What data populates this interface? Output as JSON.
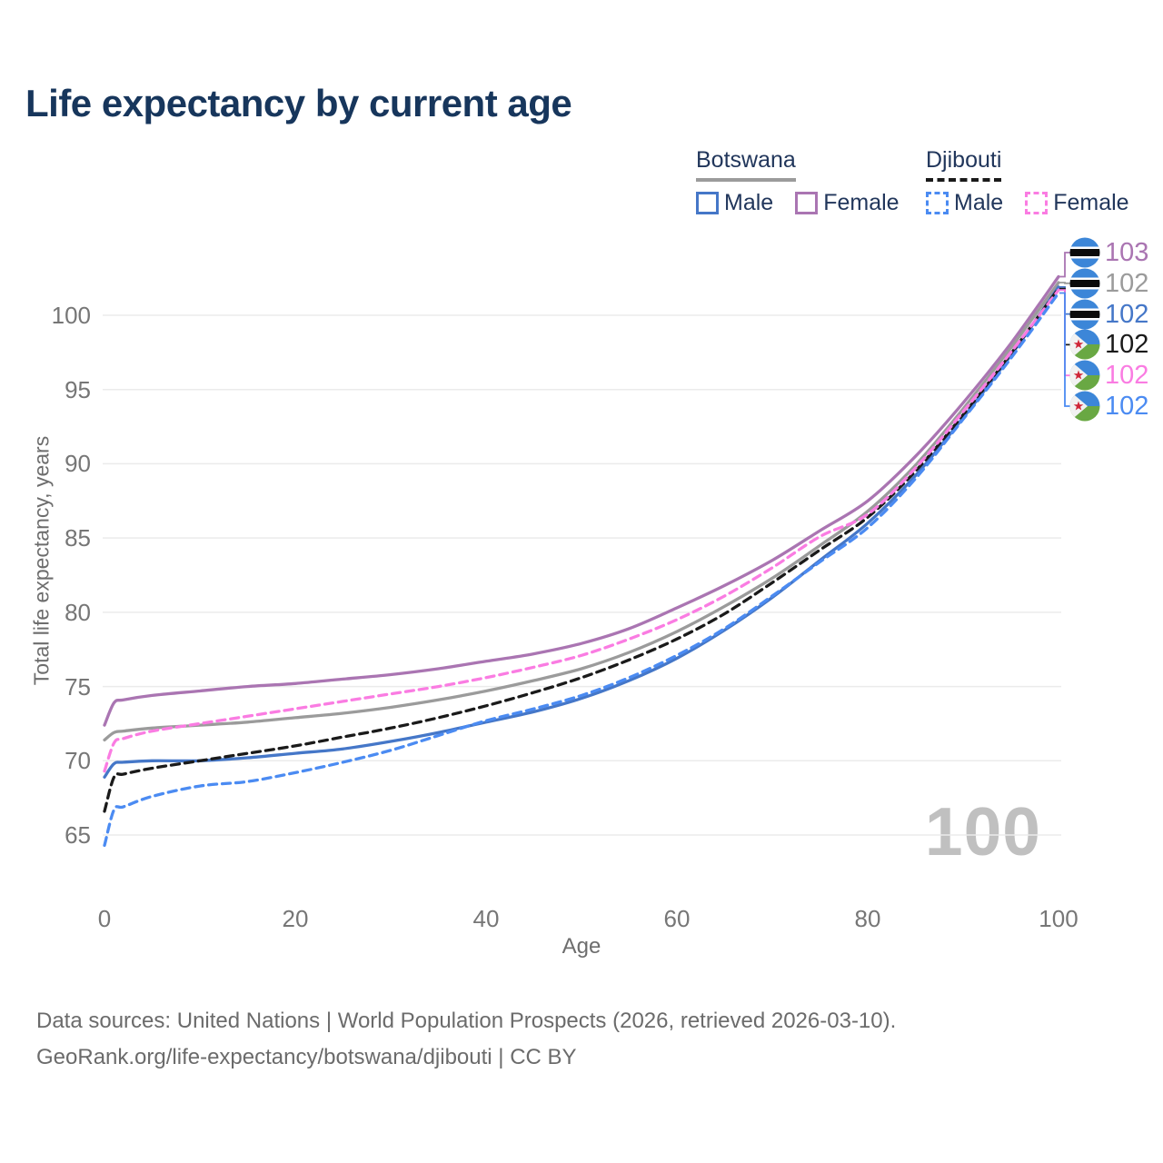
{
  "title": "Life expectancy by current age",
  "watermark": "100",
  "footer": {
    "line1": "Data sources: United Nations | World Population Prospects (2026, retrieved 2026-03-10).",
    "line2": "GeoRank.org/life-expectancy/botswana/djibouti | CC BY"
  },
  "legend": {
    "groups": [
      {
        "country": "Botswana",
        "line_style": "solid",
        "underline_color": "#9b9b9b",
        "items": [
          {
            "label": "Male",
            "color": "#4577c8",
            "dashed": false
          },
          {
            "label": "Female",
            "color": "#aa75b2",
            "dashed": false
          }
        ]
      },
      {
        "country": "Djibouti",
        "line_style": "dashed",
        "underline_color": "#1a1a1a",
        "items": [
          {
            "label": "Male",
            "color": "#4b8bf2",
            "dashed": true
          },
          {
            "label": "Female",
            "color": "#fa7ce2",
            "dashed": true
          }
        ]
      }
    ]
  },
  "chart_data": {
    "type": "line",
    "title": "Life expectancy by current age",
    "xlabel": "Age",
    "ylabel": "Total life expectancy, years",
    "x_ticks": [
      0,
      20,
      40,
      60,
      80,
      100
    ],
    "y_ticks": [
      65,
      70,
      75,
      80,
      85,
      90,
      95,
      100
    ],
    "xlim": [
      0,
      100
    ],
    "ylim": [
      63.5,
      103.5
    ],
    "grid": "horizontal",
    "legend_position": "top-right",
    "x": [
      0,
      1,
      2,
      5,
      10,
      15,
      20,
      25,
      30,
      35,
      40,
      45,
      50,
      55,
      60,
      65,
      70,
      75,
      80,
      85,
      90,
      95,
      100
    ],
    "series": [
      {
        "name": "Botswana Female",
        "country": "Botswana",
        "sex": "Female",
        "color": "#aa75b2",
        "dash": false,
        "flag": "botswana",
        "end_label": "103",
        "values": [
          72.4,
          73.9,
          74.1,
          74.4,
          74.7,
          75.0,
          75.2,
          75.5,
          75.8,
          76.2,
          76.7,
          77.2,
          77.9,
          78.9,
          80.3,
          81.8,
          83.5,
          85.5,
          87.5,
          90.5,
          94.1,
          98.1,
          102.6
        ]
      },
      {
        "name": "Botswana Both sexes",
        "country": "Botswana",
        "sex": "Both",
        "color": "#9b9b9b",
        "dash": false,
        "flag": "botswana",
        "end_label": "102",
        "values": [
          71.4,
          71.9,
          72.0,
          72.2,
          72.4,
          72.6,
          72.9,
          73.2,
          73.6,
          74.1,
          74.7,
          75.4,
          76.2,
          77.3,
          78.7,
          80.4,
          82.3,
          84.5,
          86.8,
          89.9,
          93.7,
          97.8,
          102.2
        ]
      },
      {
        "name": "Botswana Male",
        "country": "Botswana",
        "sex": "Male",
        "color": "#4577c8",
        "dash": false,
        "flag": "botswana",
        "end_label": "102",
        "values": [
          68.9,
          69.8,
          69.9,
          70.0,
          70.0,
          70.2,
          70.5,
          70.8,
          71.3,
          71.9,
          72.6,
          73.3,
          74.2,
          75.4,
          76.9,
          78.8,
          81.0,
          83.5,
          86.0,
          89.2,
          93.1,
          97.3,
          101.9
        ]
      },
      {
        "name": "Djibouti Both sexes",
        "country": "Djibouti",
        "sex": "Both",
        "color": "#1a1a1a",
        "dash": true,
        "flag": "djibouti",
        "end_label": "102",
        "values": [
          66.6,
          68.9,
          69.1,
          69.5,
          70.0,
          70.5,
          71.0,
          71.6,
          72.2,
          72.9,
          73.7,
          74.6,
          75.6,
          76.8,
          78.2,
          79.9,
          82.0,
          84.2,
          86.4,
          89.5,
          93.3,
          97.4,
          101.8
        ]
      },
      {
        "name": "Djibouti Female",
        "country": "Djibouti",
        "sex": "Female",
        "color": "#fa7ce2",
        "dash": true,
        "flag": "djibouti",
        "end_label": "102",
        "values": [
          69.3,
          71.2,
          71.5,
          72.0,
          72.5,
          73.0,
          73.5,
          74.0,
          74.5,
          75.0,
          75.6,
          76.3,
          77.1,
          78.2,
          79.5,
          81.1,
          83.0,
          85.1,
          86.6,
          89.7,
          93.5,
          97.5,
          101.7
        ]
      },
      {
        "name": "Djibouti Male",
        "country": "Djibouti",
        "sex": "Male",
        "color": "#4b8bf2",
        "dash": true,
        "flag": "djibouti",
        "end_label": "102",
        "values": [
          64.3,
          66.7,
          66.9,
          67.6,
          68.3,
          68.6,
          69.2,
          69.9,
          70.7,
          71.7,
          72.7,
          73.5,
          74.4,
          75.6,
          77.1,
          78.9,
          81.1,
          83.4,
          85.7,
          89.0,
          93.0,
          97.1,
          101.5
        ]
      }
    ],
    "colors": {
      "grid": "#ebebeb",
      "tick_text": "#767676",
      "axis_title": "#6d6d6d",
      "title_text": "#17365c",
      "footer_text": "#6b6b6b",
      "watermark": "#c0c0c0",
      "flag_blue": "#3c86d8",
      "flag_green": "#69a843",
      "flag_star_red": "#cf2638"
    }
  }
}
